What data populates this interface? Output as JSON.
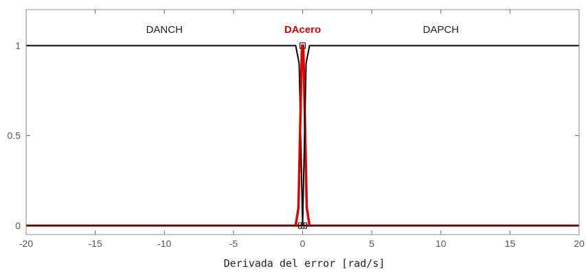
{
  "chart_data": {
    "type": "line",
    "title": "",
    "xlabel": "Derivada del error [rad/s]",
    "ylabel": "",
    "xlim": [
      -20,
      20
    ],
    "ylim": [
      -0.05,
      1.2
    ],
    "xticks": [
      "-20",
      "-15",
      "-10",
      "-5",
      "0",
      "5",
      "10",
      "15",
      "20"
    ],
    "yticks": [
      "0",
      "0.5",
      "1"
    ],
    "grid": false,
    "series": [
      {
        "name": "DANCH",
        "color": "#000000",
        "x": [
          -20,
          -0.5,
          -0.25,
          0.0
        ],
        "y": [
          1,
          1,
          0.9,
          0
        ]
      },
      {
        "name": "DAcero",
        "color": "#e00000",
        "x": [
          -0.5,
          -0.3,
          -0.05,
          0.05,
          0.3,
          0.5
        ],
        "y": [
          0,
          0.1,
          1,
          1,
          0.1,
          0
        ]
      },
      {
        "name": "DAPCH",
        "color": "#000000",
        "x": [
          0.0,
          0.25,
          0.5,
          20
        ],
        "y": [
          0,
          0.9,
          1,
          1
        ]
      }
    ],
    "labels": [
      {
        "text": "DANCH",
        "color": "#222222",
        "x": -10,
        "y": 1.09
      },
      {
        "text": "DAcero",
        "color": "#e00000",
        "x": 0,
        "y": 1.09
      },
      {
        "text": "DAPCH",
        "color": "#222222",
        "x": 10,
        "y": 1.09
      }
    ]
  }
}
